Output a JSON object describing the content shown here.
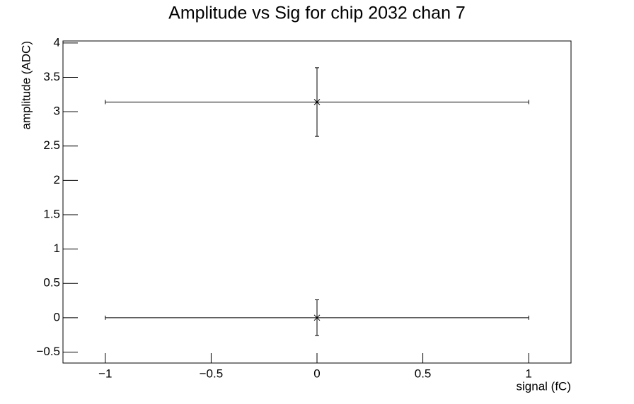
{
  "chart_data": {
    "type": "scatter",
    "title": "Amplitude vs Sig for chip 2032 chan 7",
    "xlabel": "signal (fC)",
    "ylabel": "amplitude (ADC)",
    "x": [
      0,
      0
    ],
    "values": [
      3.14,
      0
    ],
    "xerr": [
      1,
      1
    ],
    "yerr": [
      0.5,
      0.26
    ],
    "color": "#000000",
    "xlim": [
      -1.2,
      1.2
    ],
    "xticks": [
      {
        "value": -1,
        "label": "−1"
      },
      {
        "value": -0.5,
        "label": "−0.5"
      },
      0,
      0.5,
      1
    ],
    "ylim": [
      -0.66,
      4.03
    ],
    "yticks": [
      {
        "value": -0.5,
        "label": "−0.5"
      },
      0,
      0.5,
      1,
      1.5,
      2,
      2.5,
      3,
      3.5,
      4
    ],
    "grid": false
  }
}
